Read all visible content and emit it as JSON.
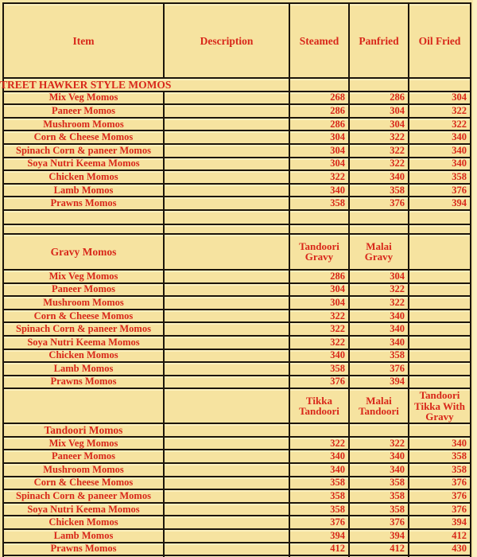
{
  "palette": {
    "page_bg": "#f6e5a6",
    "cell_bg": "#f6e3a0",
    "text_red": "#d8271a",
    "border_black": "#1c150b",
    "highlight_cream": "#fbf1c2"
  },
  "header": {
    "columns": [
      "Item",
      "Description",
      "Steamed",
      "Panfried",
      "Oil Fried"
    ]
  },
  "sections": [
    {
      "title": "TREET HAWKER STYLE MOMOS",
      "price_headers": [],
      "items": [
        [
          "Mix Veg Momos",
          "268",
          "286",
          "304"
        ],
        [
          "Paneer Momos",
          "286",
          "304",
          "322"
        ],
        [
          "Mushroom Momos",
          "286",
          "304",
          "322"
        ],
        [
          "Corn & Cheese Momos",
          "304",
          "322",
          "340"
        ],
        [
          "Spinach Corn & paneer Momos",
          "304",
          "322",
          "340"
        ],
        [
          "Soya Nutri Keema Momos",
          "304",
          "322",
          "340"
        ],
        [
          "Chicken Momos",
          "322",
          "340",
          "358"
        ],
        [
          "Lamb Momos",
          "340",
          "358",
          "376"
        ],
        [
          "Prawns Momos",
          "358",
          "376",
          "394"
        ]
      ]
    },
    {
      "title": "Gravy Momos",
      "price_headers": [
        "Tandoori Gravy",
        "Malai Gravy",
        ""
      ],
      "items": [
        [
          "Mix Veg Momos",
          "286",
          "304",
          ""
        ],
        [
          "Paneer Momos",
          "304",
          "322",
          ""
        ],
        [
          "Mushroom Momos",
          "304",
          "322",
          ""
        ],
        [
          "Corn & Cheese Momos",
          "322",
          "340",
          ""
        ],
        [
          "Spinach Corn & paneer Momos",
          "322",
          "340",
          ""
        ],
        [
          "Soya Nutri Keema Momos",
          "322",
          "340",
          ""
        ],
        [
          "Chicken Momos",
          "340",
          "358",
          ""
        ],
        [
          "Lamb Momos",
          "358",
          "376",
          ""
        ],
        [
          "Prawns Momos",
          "376",
          "394",
          ""
        ]
      ]
    },
    {
      "title": "Tandoori Momos",
      "price_headers": [
        "Tikka Tandoori",
        "Malai Tandoori",
        "Tandoori Tikka With Gravy"
      ],
      "items": [
        [
          "Mix Veg Momos",
          "322",
          "322",
          "340"
        ],
        [
          "Paneer Momos",
          "340",
          "340",
          "358"
        ],
        [
          "Mushroom Momos",
          "340",
          "340",
          "358"
        ],
        [
          "Corn & Cheese Momos",
          "358",
          "358",
          "376"
        ],
        [
          "Spinach Corn & paneer Momos",
          "358",
          "358",
          "376"
        ],
        [
          "Soya Nutri Keema Momos",
          "358",
          "358",
          "376"
        ],
        [
          "Chicken Momos",
          "376",
          "376",
          "394"
        ],
        [
          "Lamb Momos",
          "394",
          "394",
          "412"
        ],
        [
          "Prawns Momos",
          "412",
          "412",
          "430"
        ]
      ]
    }
  ]
}
